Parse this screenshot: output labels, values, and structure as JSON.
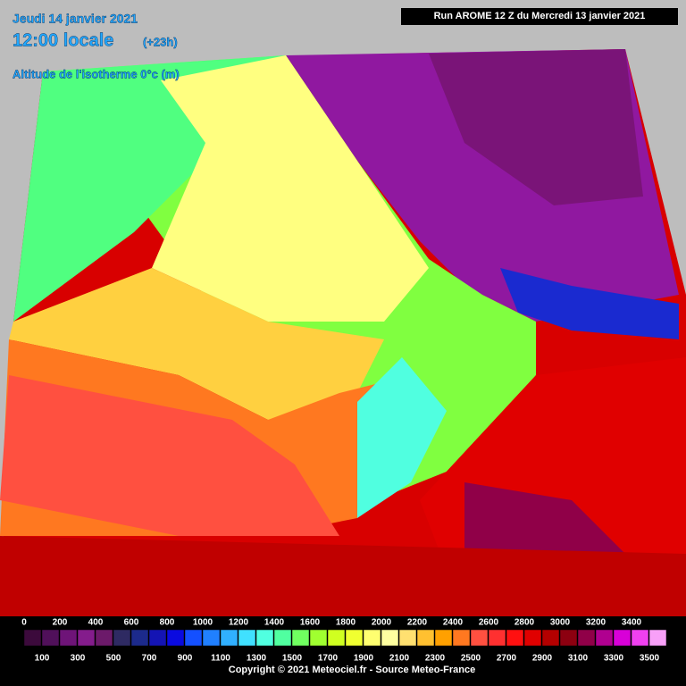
{
  "header": {
    "date": "Jeudi 14 janvier 2021",
    "time": "12:00 locale",
    "offset": "(+23h)",
    "parameter": "Altitude de l'isotherme 0°c (m)",
    "run": "Run AROME 12 Z du Mercredi 13 janvier 2021"
  },
  "legend": {
    "values": [
      0,
      100,
      200,
      300,
      400,
      500,
      600,
      700,
      800,
      900,
      1000,
      1100,
      1200,
      1300,
      1400,
      1500,
      1600,
      1700,
      1800,
      1900,
      2000,
      2100,
      2200,
      2300,
      2400,
      2500,
      2600,
      2700,
      2800,
      2900,
      3000,
      3100,
      3200,
      3300,
      3400,
      3500
    ],
    "colors": [
      "#3c0a3c",
      "#50105a",
      "#6e1478",
      "#841c8c",
      "#6c1a6a",
      "#2e2a62",
      "#1c2a8c",
      "#1414b4",
      "#0a0ae0",
      "#1450ff",
      "#2080ff",
      "#30b0ff",
      "#40e0ff",
      "#50ffe0",
      "#50ffa0",
      "#70ff60",
      "#a0ff30",
      "#d0ff20",
      "#f0ff30",
      "#ffff70",
      "#ffffa0",
      "#ffe070",
      "#ffc030",
      "#ffa000",
      "#ff7820",
      "#ff5040",
      "#ff3030",
      "#ff1010",
      "#e00000",
      "#b40000",
      "#8c0010",
      "#900048",
      "#b00090",
      "#d800d8",
      "#f040f0",
      "#f8a0f8"
    ]
  },
  "footer": {
    "copyright": "Copyright © 2021 Meteociel.fr - Source Meteo-France"
  }
}
